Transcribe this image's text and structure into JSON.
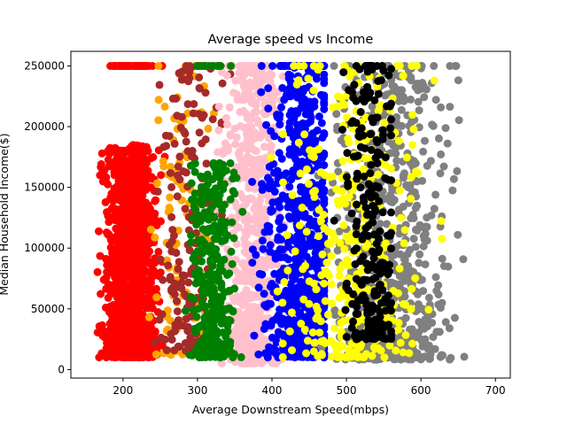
{
  "chart_data": {
    "type": "scatter",
    "title": "Average speed vs Income",
    "xlabel": "Average Downstream Speed(mbps)",
    "ylabel": "Median Household Income($)",
    "xlim": [
      130,
      720
    ],
    "ylim": [
      -7000,
      262000
    ],
    "grid": false,
    "x_ticks": [
      200,
      300,
      400,
      500,
      600,
      700
    ],
    "y_ticks": [
      0,
      50000,
      100000,
      150000,
      200000,
      250000
    ],
    "series": [
      {
        "color": "#ff0000",
        "x_range": [
          140,
          300
        ],
        "x_peak": 210,
        "y_range": [
          10000,
          185000
        ],
        "approx_count": 1400
      },
      {
        "color": "#ffa500",
        "x_range": [
          215,
          390
        ],
        "x_peak": 280,
        "y_range": [
          12000,
          250000
        ],
        "approx_count": 120
      },
      {
        "color": "#a52a2a",
        "x_range": [
          200,
          400
        ],
        "x_peak": 290,
        "y_range": [
          15000,
          250000
        ],
        "approx_count": 200
      },
      {
        "color": "#ffc0cb",
        "x_range": [
          240,
          420
        ],
        "x_peak": 375,
        "y_range": [
          5000,
          250000
        ],
        "approx_count": 700
      },
      {
        "color": "#008000",
        "x_range": [
          270,
          420
        ],
        "x_peak": 320,
        "y_range": [
          10000,
          170000
        ],
        "approx_count": 350
      },
      {
        "color": "#0000ff",
        "x_range": [
          230,
          470
        ],
        "x_peak": 440,
        "y_range": [
          10000,
          250000
        ],
        "approx_count": 800
      },
      {
        "color": "#808080",
        "x_range": [
          320,
          710
        ],
        "x_peak": 560,
        "y_range": [
          8000,
          250000
        ],
        "approx_count": 650
      },
      {
        "color": "#ffff00",
        "x_range": [
          200,
          650
        ],
        "x_peak": 510,
        "y_range": [
          10000,
          250000
        ],
        "approx_count": 350
      },
      {
        "color": "#000000",
        "x_range": [
          400,
          560
        ],
        "x_peak": 530,
        "y_range": [
          25000,
          250000
        ],
        "approx_count": 260
      }
    ]
  }
}
